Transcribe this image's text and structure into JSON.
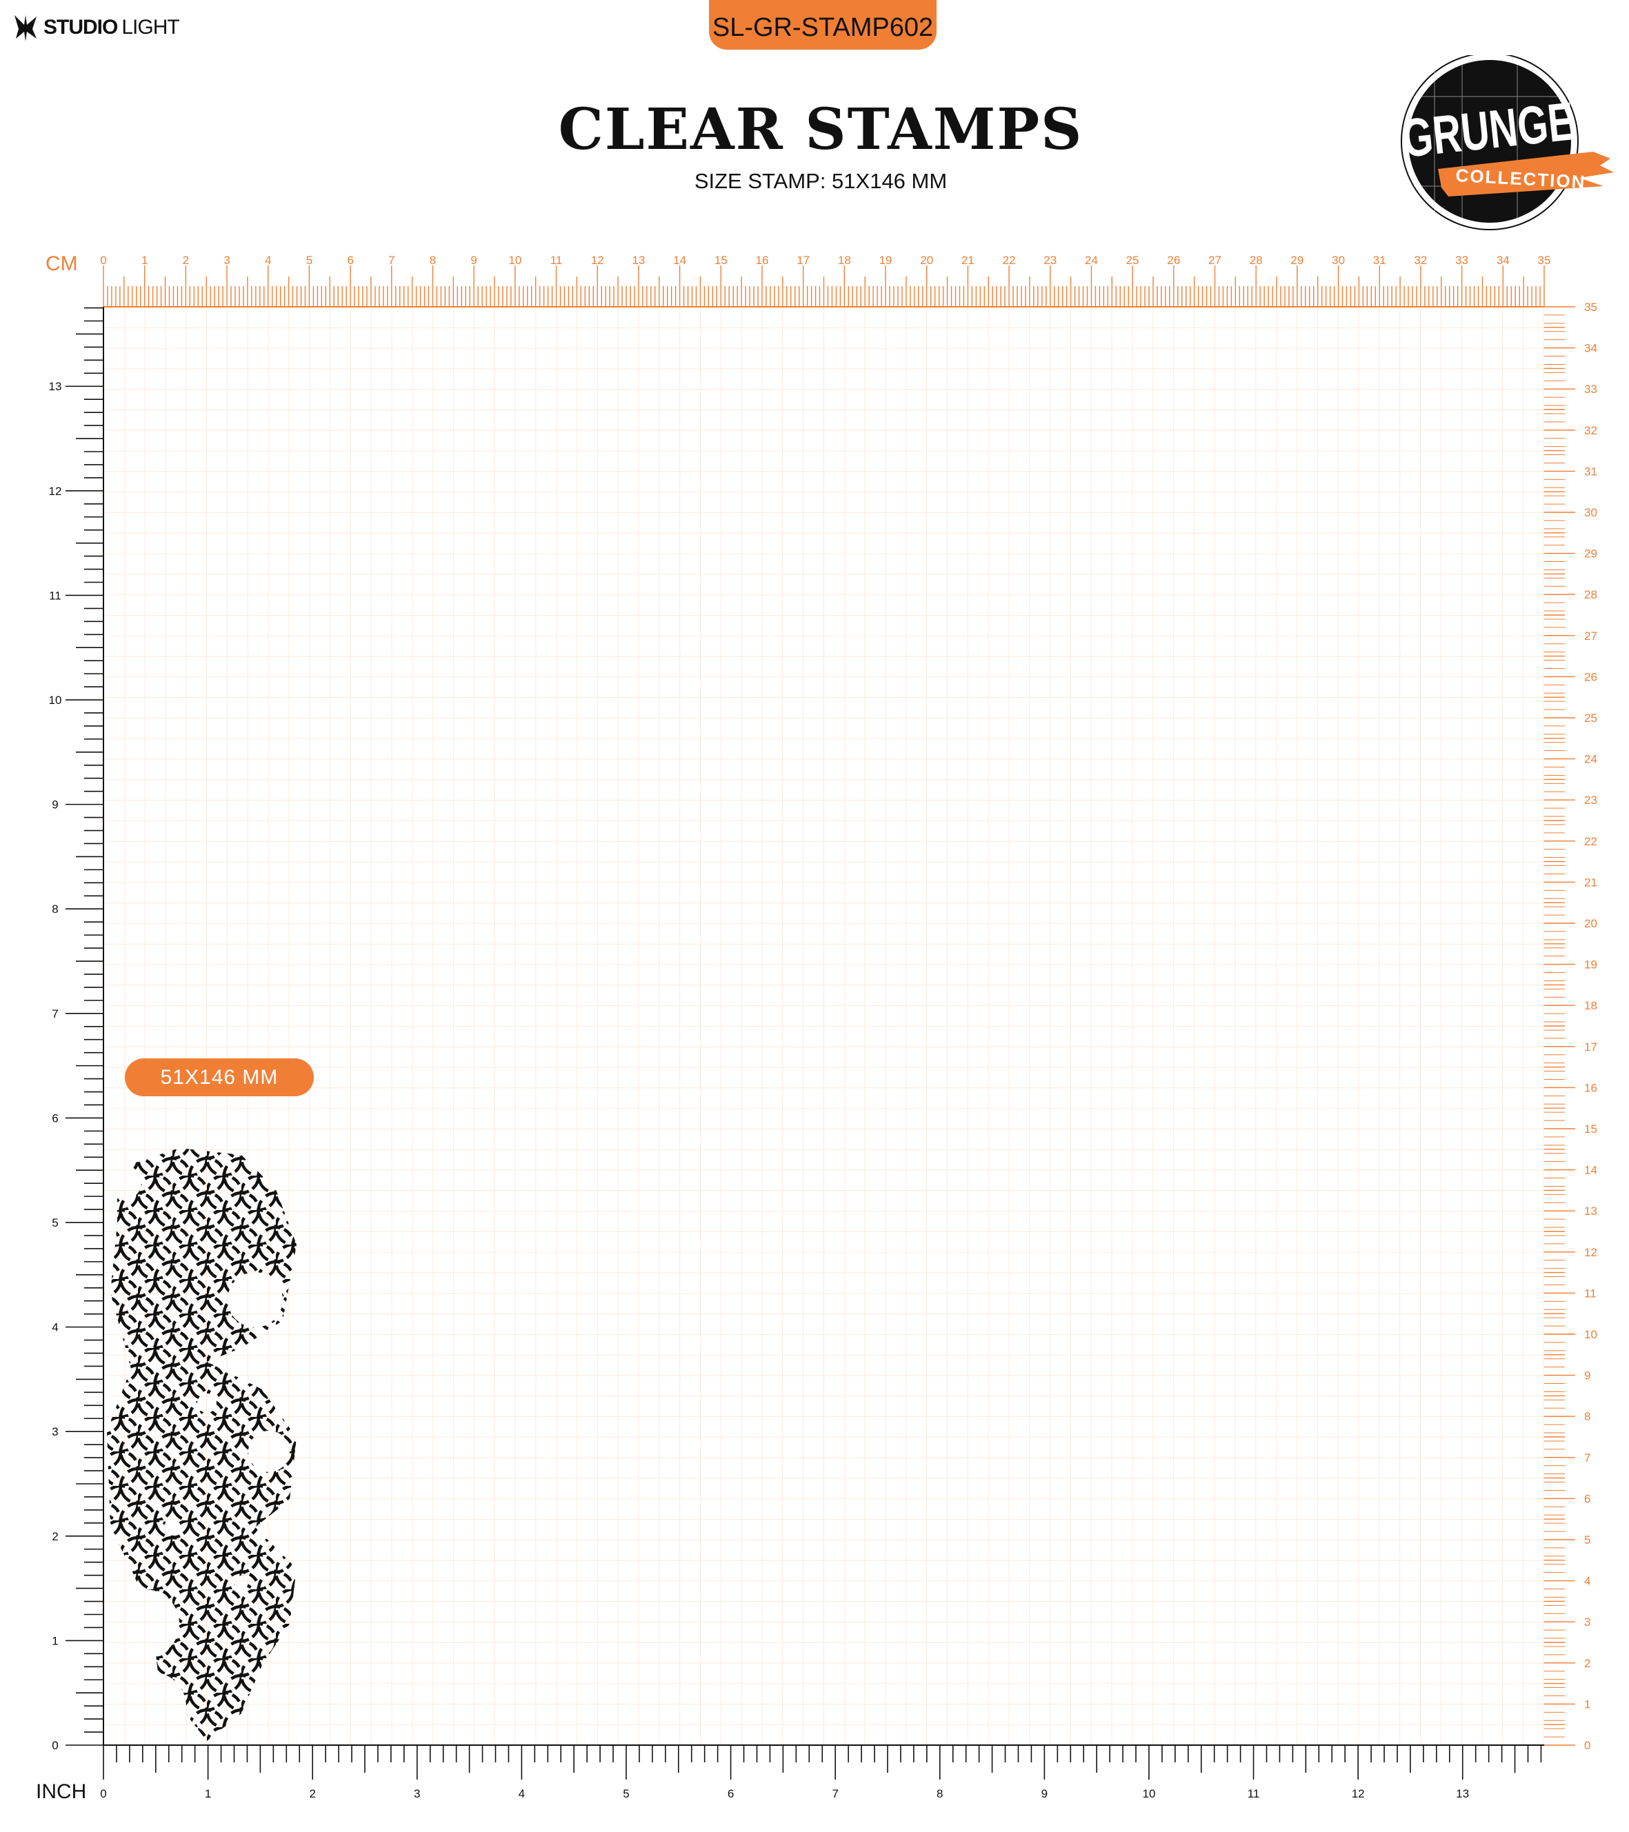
{
  "brand": {
    "name_bold": "STUDIO",
    "name_light": "LIGHT"
  },
  "product_code": "SL-GR-STAMP602",
  "title": "CLEAR STAMPS",
  "subtitle": "SIZE STAMP: 51X146 MM",
  "collection_logo": {
    "word": "GRUNGE",
    "ribbon": "COLLECTION"
  },
  "rulers": {
    "top": {
      "unit": "CM",
      "min": 0,
      "max": 35
    },
    "right": {
      "unit": "CM",
      "min": 0,
      "max": 35
    },
    "left": {
      "unit": "INCH",
      "min": 0,
      "max": 13
    },
    "bottom": {
      "unit": "INCH",
      "min": 0,
      "max": 13
    }
  },
  "stamp": {
    "size_label": "51X146 MM",
    "width_mm": 51,
    "height_mm": 146
  },
  "colors": {
    "accent": "#f07f35",
    "ink": "#111111"
  }
}
